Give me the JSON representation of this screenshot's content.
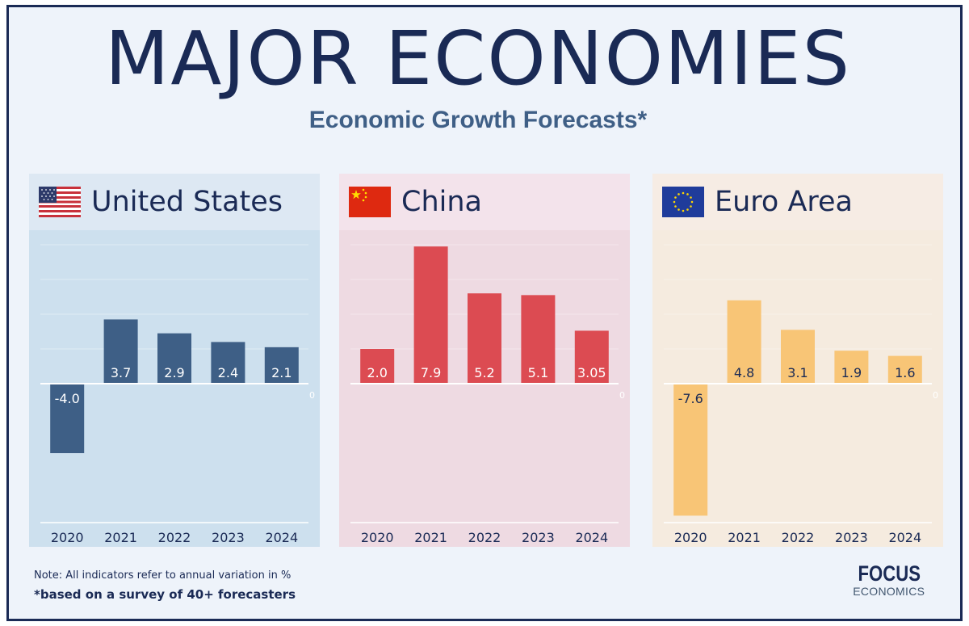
{
  "title": "MAJOR ECONOMIES",
  "subtitle": "Economic Growth Forecasts*",
  "note": "Note: All indicators refer to annual variation in %",
  "footnote": "*based on a survey of 40+ forecasters",
  "logo": {
    "top": "FOCUS",
    "bottom": "ECONOMICS"
  },
  "chart_data": [
    {
      "type": "bar",
      "title": "United States",
      "flag_icon": "us-flag-icon",
      "categories": [
        "2020",
        "2021",
        "2022",
        "2023",
        "2024"
      ],
      "values": [
        -4.0,
        3.7,
        2.9,
        2.4,
        2.1
      ],
      "value_labels": [
        "-4.0",
        "3.7",
        "2.9",
        "2.4",
        "2.1"
      ],
      "zero_label": "0",
      "ylim": [
        -8,
        8
      ],
      "colors": {
        "bar": "#3e5f86",
        "header_bg": "#dde8f3",
        "plot_bg": "#cde0ee"
      }
    },
    {
      "type": "bar",
      "title": "China",
      "flag_icon": "china-flag-icon",
      "categories": [
        "2020",
        "2021",
        "2022",
        "2023",
        "2024"
      ],
      "values": [
        2.0,
        7.9,
        5.2,
        5.1,
        3.05
      ],
      "value_labels": [
        "2.0",
        "7.9",
        "5.2",
        "5.1",
        "3.05"
      ],
      "zero_label": "0",
      "ylim": [
        -8,
        8
      ],
      "colors": {
        "bar": "#dc4b52",
        "header_bg": "#f3e3eb",
        "plot_bg": "#eedae2"
      }
    },
    {
      "type": "bar",
      "title": "Euro Area",
      "flag_icon": "eu-flag-icon",
      "categories": [
        "2020",
        "2021",
        "2022",
        "2023",
        "2024"
      ],
      "values": [
        -7.6,
        4.8,
        3.1,
        1.9,
        1.6
      ],
      "value_labels": [
        "-7.6",
        "4.8",
        "3.1",
        "1.9",
        "1.6"
      ],
      "zero_label": "0",
      "ylim": [
        -8,
        8
      ],
      "colors": {
        "bar": "#f8c576",
        "header_bg": "#f6ece4",
        "plot_bg": "#f5ebdf"
      }
    }
  ]
}
